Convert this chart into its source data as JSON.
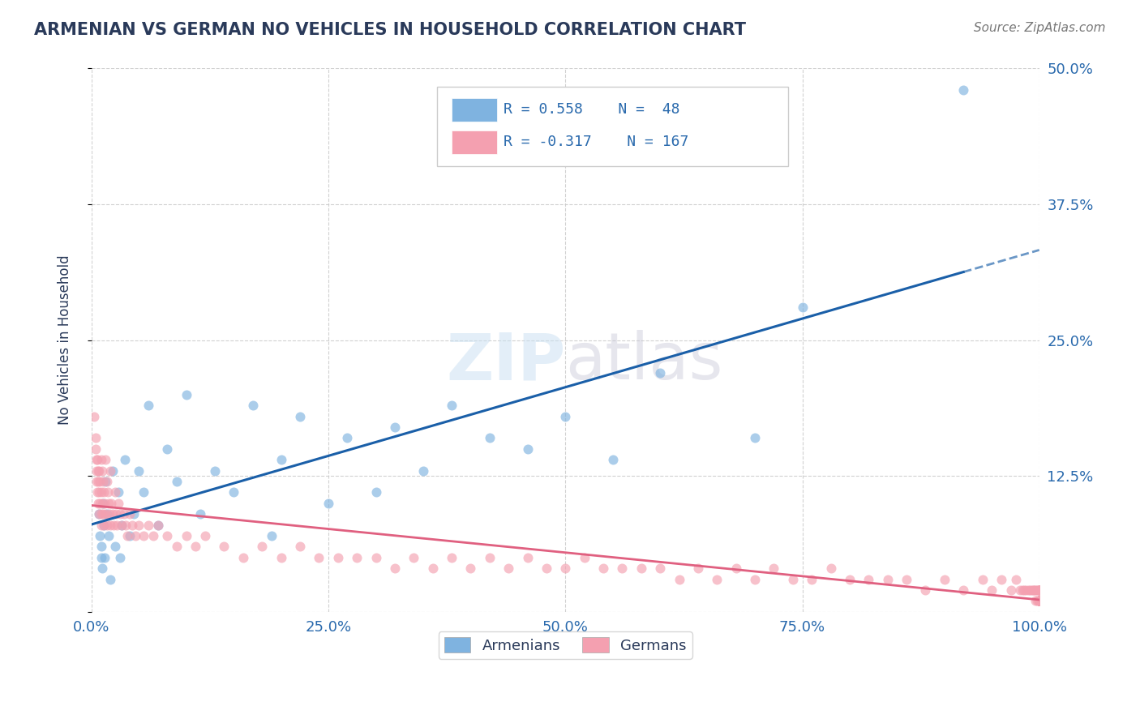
{
  "title": "ARMENIAN VS GERMAN NO VEHICLES IN HOUSEHOLD CORRELATION CHART",
  "source_text": "Source: ZipAtlas.com",
  "ylabel": "No Vehicles in Household",
  "xlim": [
    0.0,
    1.0
  ],
  "ylim": [
    0.0,
    0.5
  ],
  "xticks": [
    0.0,
    0.25,
    0.5,
    0.75,
    1.0
  ],
  "xticklabels": [
    "0.0%",
    "25.0%",
    "50.0%",
    "75.0%",
    "100.0%"
  ],
  "yticks": [
    0.0,
    0.125,
    0.25,
    0.375,
    0.5
  ],
  "yticklabels": [
    "",
    "12.5%",
    "25.0%",
    "37.5%",
    "50.0%"
  ],
  "armenian_R": 0.558,
  "armenian_N": 48,
  "german_R": -0.317,
  "german_N": 167,
  "armenian_color": "#7fb3e0",
  "german_color": "#f4a0b0",
  "regression_blue": "#1a5fa8",
  "regression_pink": "#e06080",
  "background_color": "#ffffff",
  "title_color": "#2a3a5a",
  "axis_label_color": "#2a6aad",
  "watermark_zip": "ZIP",
  "watermark_atlas": "atlas",
  "legend_armenians": "Armenians",
  "legend_germans": "Germans",
  "armenian_x": [
    0.008,
    0.009,
    0.01,
    0.01,
    0.011,
    0.012,
    0.013,
    0.014,
    0.015,
    0.016,
    0.018,
    0.02,
    0.022,
    0.025,
    0.028,
    0.03,
    0.032,
    0.035,
    0.04,
    0.045,
    0.05,
    0.055,
    0.06,
    0.07,
    0.08,
    0.09,
    0.1,
    0.115,
    0.13,
    0.15,
    0.17,
    0.19,
    0.2,
    0.22,
    0.25,
    0.27,
    0.3,
    0.32,
    0.35,
    0.38,
    0.42,
    0.46,
    0.5,
    0.55,
    0.6,
    0.7,
    0.75,
    0.92
  ],
  "armenian_y": [
    0.09,
    0.07,
    0.06,
    0.05,
    0.04,
    0.1,
    0.08,
    0.05,
    0.12,
    0.09,
    0.07,
    0.03,
    0.13,
    0.06,
    0.11,
    0.05,
    0.08,
    0.14,
    0.07,
    0.09,
    0.13,
    0.11,
    0.19,
    0.08,
    0.15,
    0.12,
    0.2,
    0.09,
    0.13,
    0.11,
    0.19,
    0.07,
    0.14,
    0.18,
    0.1,
    0.16,
    0.11,
    0.17,
    0.13,
    0.19,
    0.16,
    0.15,
    0.18,
    0.14,
    0.22,
    0.16,
    0.28,
    0.48
  ],
  "german_x": [
    0.003,
    0.004,
    0.004,
    0.005,
    0.005,
    0.005,
    0.006,
    0.006,
    0.007,
    0.007,
    0.007,
    0.008,
    0.008,
    0.008,
    0.009,
    0.009,
    0.01,
    0.01,
    0.01,
    0.01,
    0.011,
    0.011,
    0.012,
    0.012,
    0.013,
    0.013,
    0.014,
    0.015,
    0.015,
    0.016,
    0.016,
    0.017,
    0.018,
    0.019,
    0.02,
    0.02,
    0.021,
    0.022,
    0.023,
    0.025,
    0.026,
    0.027,
    0.028,
    0.03,
    0.032,
    0.034,
    0.036,
    0.038,
    0.04,
    0.043,
    0.046,
    0.05,
    0.055,
    0.06,
    0.065,
    0.07,
    0.08,
    0.09,
    0.1,
    0.11,
    0.12,
    0.14,
    0.16,
    0.18,
    0.2,
    0.22,
    0.24,
    0.26,
    0.28,
    0.3,
    0.32,
    0.34,
    0.36,
    0.38,
    0.4,
    0.42,
    0.44,
    0.46,
    0.48,
    0.5,
    0.52,
    0.54,
    0.56,
    0.58,
    0.6,
    0.62,
    0.64,
    0.66,
    0.68,
    0.7,
    0.72,
    0.74,
    0.76,
    0.78,
    0.8,
    0.82,
    0.84,
    0.86,
    0.88,
    0.9,
    0.92,
    0.94,
    0.95,
    0.96,
    0.97,
    0.975,
    0.98,
    0.982,
    0.984,
    0.986,
    0.988,
    0.99,
    0.992,
    0.993,
    0.994,
    0.995,
    0.996,
    0.997,
    0.998,
    0.998,
    0.999,
    0.999,
    0.999,
    1.0,
    1.0,
    1.0,
    1.0,
    1.0,
    1.0,
    1.0,
    1.0,
    1.0,
    1.0,
    1.0,
    1.0,
    1.0,
    1.0,
    1.0,
    1.0,
    1.0,
    1.0,
    1.0,
    1.0,
    1.0,
    1.0,
    1.0,
    1.0,
    1.0,
    1.0,
    1.0,
    1.0,
    1.0,
    1.0,
    1.0,
    1.0,
    1.0,
    1.0,
    1.0,
    1.0,
    1.0,
    1.0,
    1.0,
    1.0,
    1.0,
    1.0,
    1.0,
    1.0
  ],
  "german_y": [
    0.18,
    0.16,
    0.15,
    0.14,
    0.13,
    0.12,
    0.14,
    0.11,
    0.13,
    0.12,
    0.1,
    0.13,
    0.11,
    0.09,
    0.12,
    0.1,
    0.14,
    0.11,
    0.09,
    0.08,
    0.13,
    0.1,
    0.12,
    0.09,
    0.11,
    0.08,
    0.1,
    0.14,
    0.09,
    0.12,
    0.08,
    0.11,
    0.1,
    0.09,
    0.13,
    0.08,
    0.1,
    0.09,
    0.08,
    0.11,
    0.09,
    0.08,
    0.1,
    0.09,
    0.08,
    0.09,
    0.08,
    0.07,
    0.09,
    0.08,
    0.07,
    0.08,
    0.07,
    0.08,
    0.07,
    0.08,
    0.07,
    0.06,
    0.07,
    0.06,
    0.07,
    0.06,
    0.05,
    0.06,
    0.05,
    0.06,
    0.05,
    0.05,
    0.05,
    0.05,
    0.04,
    0.05,
    0.04,
    0.05,
    0.04,
    0.05,
    0.04,
    0.05,
    0.04,
    0.04,
    0.05,
    0.04,
    0.04,
    0.04,
    0.04,
    0.03,
    0.04,
    0.03,
    0.04,
    0.03,
    0.04,
    0.03,
    0.03,
    0.04,
    0.03,
    0.03,
    0.03,
    0.03,
    0.02,
    0.03,
    0.02,
    0.03,
    0.02,
    0.03,
    0.02,
    0.03,
    0.02,
    0.02,
    0.02,
    0.02,
    0.02,
    0.02,
    0.02,
    0.02,
    0.02,
    0.02,
    0.01,
    0.02,
    0.01,
    0.02,
    0.01,
    0.02,
    0.01,
    0.02,
    0.01,
    0.02,
    0.01,
    0.02,
    0.01,
    0.01,
    0.02,
    0.01,
    0.01,
    0.02,
    0.01,
    0.01,
    0.01,
    0.01,
    0.01,
    0.01,
    0.01,
    0.01,
    0.01,
    0.01,
    0.01,
    0.01,
    0.01,
    0.01,
    0.01,
    0.01,
    0.01,
    0.01,
    0.01,
    0.01,
    0.01,
    0.01,
    0.01,
    0.01,
    0.01,
    0.01,
    0.01,
    0.01,
    0.01,
    0.01,
    0.01,
    0.01,
    0.01
  ]
}
